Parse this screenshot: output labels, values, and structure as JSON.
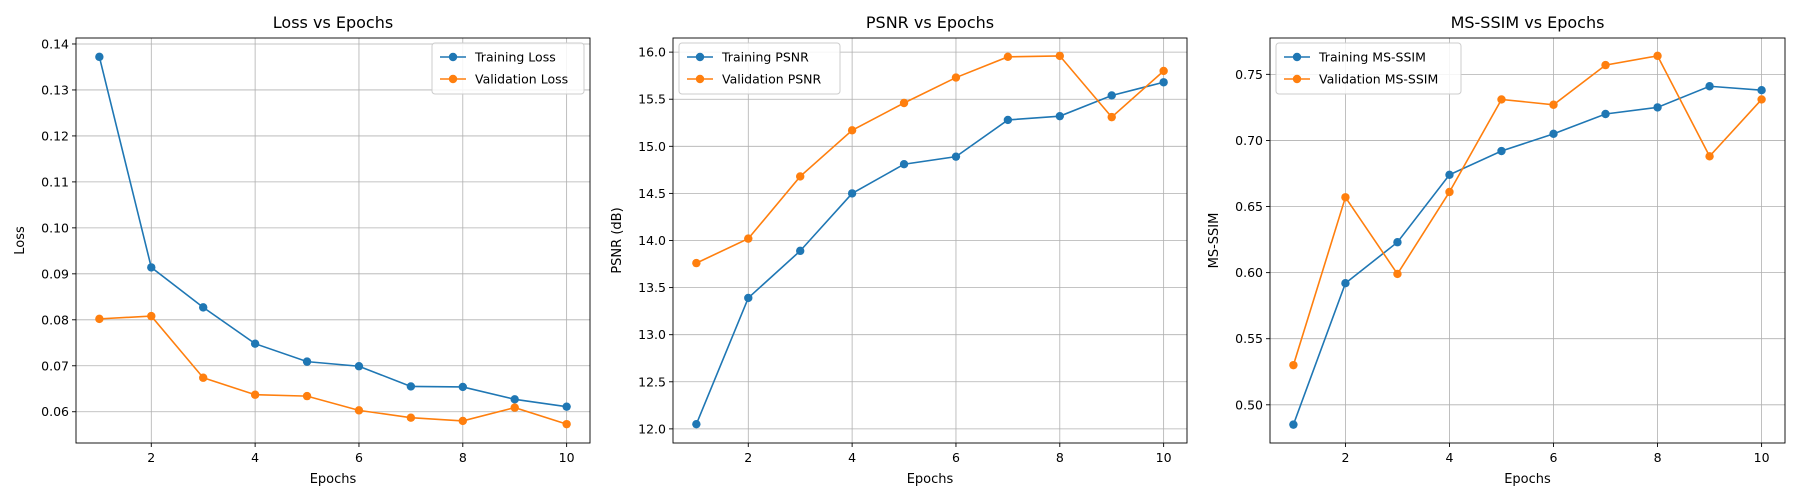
{
  "chart_data": [
    {
      "type": "line",
      "title": "Loss vs Epochs",
      "xlabel": "Epochs",
      "ylabel": "Loss",
      "x": [
        1,
        2,
        3,
        4,
        5,
        6,
        7,
        8,
        9,
        10
      ],
      "xlim": [
        0.55,
        10.45
      ],
      "ylim": [
        0.0532,
        0.1413
      ],
      "xticks": [
        2,
        4,
        6,
        8,
        10
      ],
      "xtick_labels": [
        "2",
        "4",
        "6",
        "8",
        "10"
      ],
      "yticks": [
        0.06,
        0.07,
        0.08,
        0.09,
        0.1,
        0.11,
        0.12,
        0.13,
        0.14
      ],
      "ytick_labels": [
        "0.06",
        "0.07",
        "0.08",
        "0.09",
        "0.10",
        "0.11",
        "0.12",
        "0.13",
        "0.14"
      ],
      "grid": true,
      "legend": "top-right",
      "series": [
        {
          "name": "Training Loss",
          "color": "#1f77b4",
          "values": [
            0.1372,
            0.0914,
            0.0827,
            0.0748,
            0.0709,
            0.0699,
            0.0655,
            0.0654,
            0.0627,
            0.0611
          ]
        },
        {
          "name": "Validation Loss",
          "color": "#ff7f0e",
          "values": [
            0.0802,
            0.0808,
            0.0674,
            0.0637,
            0.0634,
            0.0603,
            0.0587,
            0.058,
            0.0609,
            0.0573
          ]
        }
      ]
    },
    {
      "type": "line",
      "title": "PSNR vs Epochs",
      "xlabel": "Epochs",
      "ylabel": "PSNR (dB)",
      "x": [
        1,
        2,
        3,
        4,
        5,
        6,
        7,
        8,
        9,
        10
      ],
      "xlim": [
        0.55,
        10.45
      ],
      "ylim": [
        11.85,
        16.15
      ],
      "xticks": [
        2,
        4,
        6,
        8,
        10
      ],
      "xtick_labels": [
        "2",
        "4",
        "6",
        "8",
        "10"
      ],
      "yticks": [
        12.0,
        12.5,
        13.0,
        13.5,
        14.0,
        14.5,
        15.0,
        15.5,
        16.0
      ],
      "ytick_labels": [
        "12.0",
        "12.5",
        "13.0",
        "13.5",
        "14.0",
        "14.5",
        "15.0",
        "15.5",
        "16.0"
      ],
      "grid": true,
      "legend": "top-left",
      "series": [
        {
          "name": "Training PSNR",
          "color": "#1f77b4",
          "values": [
            12.05,
            13.39,
            13.89,
            14.5,
            14.81,
            14.89,
            15.28,
            15.32,
            15.54,
            15.68
          ]
        },
        {
          "name": "Validation PSNR",
          "color": "#ff7f0e",
          "values": [
            13.76,
            14.02,
            14.68,
            15.17,
            15.46,
            15.73,
            15.95,
            15.96,
            15.31,
            15.8
          ]
        }
      ]
    },
    {
      "type": "line",
      "title": "MS-SSIM vs Epochs",
      "xlabel": "Epochs",
      "ylabel": "MS-SSIM",
      "x": [
        1,
        2,
        3,
        4,
        5,
        6,
        7,
        8,
        9,
        10
      ],
      "xlim": [
        0.55,
        10.45
      ],
      "ylim": [
        0.4711,
        0.7775
      ],
      "xticks": [
        2,
        4,
        6,
        8,
        10
      ],
      "xtick_labels": [
        "2",
        "4",
        "6",
        "8",
        "10"
      ],
      "yticks": [
        0.5,
        0.55,
        0.6,
        0.65,
        0.7,
        0.75
      ],
      "ytick_labels": [
        "0.50",
        "0.55",
        "0.60",
        "0.65",
        "0.70",
        "0.75"
      ],
      "grid": true,
      "legend": "top-left",
      "series": [
        {
          "name": "Training MS-SSIM",
          "color": "#1f77b4",
          "values": [
            0.485,
            0.592,
            0.623,
            0.674,
            0.692,
            0.705,
            0.72,
            0.725,
            0.741,
            0.738
          ]
        },
        {
          "name": "Validation MS-SSIM",
          "color": "#ff7f0e",
          "values": [
            0.53,
            0.657,
            0.599,
            0.661,
            0.731,
            0.727,
            0.757,
            0.764,
            0.688,
            0.731
          ]
        }
      ]
    }
  ]
}
